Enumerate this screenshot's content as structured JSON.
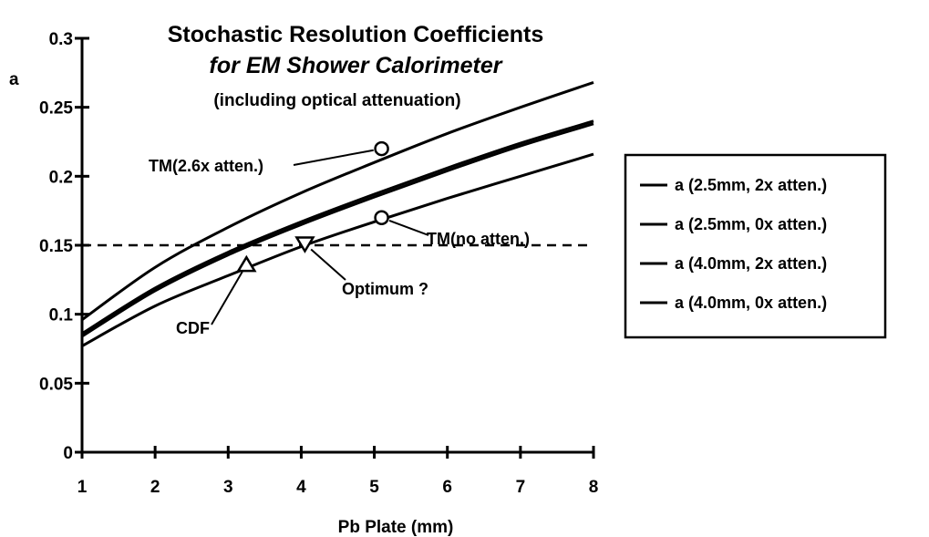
{
  "chart_data": {
    "type": "line",
    "title": "Stochastic Resolution Coefficients",
    "subtitle": "for EM Shower Calorimeter",
    "note": "(including optical attenuation)",
    "xlabel": "Pb Plate (mm)",
    "ylabel": "a",
    "xlim": [
      1,
      8
    ],
    "ylim": [
      0,
      0.3
    ],
    "x_ticks": [
      "1",
      "2",
      "3",
      "4",
      "5",
      "6",
      "7",
      "8"
    ],
    "y_ticks": [
      "0",
      "0.05",
      "0.1",
      "0.15",
      "0.2",
      "0.25",
      "0.3"
    ],
    "grid": false,
    "legend_position": "right",
    "x": [
      1,
      2,
      3,
      4,
      5,
      6,
      7,
      8
    ],
    "series": [
      {
        "name": "a (2.5mm, 2x atten.)",
        "values": [
          0.096,
          0.134,
          0.163,
          0.188,
          0.21,
          0.231,
          0.25,
          0.268
        ]
      },
      {
        "name": "a (2.5mm, 0x atten.)",
        "values": [
          0.086,
          0.119,
          0.145,
          0.167,
          0.187,
          0.206,
          0.224,
          0.24
        ]
      },
      {
        "name": "a (4.0mm, 2x atten.)",
        "values": [
          0.084,
          0.117,
          0.143,
          0.165,
          0.185,
          0.204,
          0.222,
          0.238
        ]
      },
      {
        "name": "a (4.0mm, 0x atten.)",
        "values": [
          0.077,
          0.106,
          0.128,
          0.149,
          0.167,
          0.184,
          0.2,
          0.216
        ]
      }
    ],
    "reference_line": {
      "y": 0.15,
      "style": "dashed"
    },
    "markers": [
      {
        "label": "TM(2.6x atten.)",
        "shape": "circle",
        "x": 5.1,
        "y": 0.22
      },
      {
        "label": "TM(no atten.)",
        "shape": "circle",
        "x": 5.1,
        "y": 0.17
      },
      {
        "label": "Optimum ?",
        "shape": "triangle-down",
        "x": 4.05,
        "y": 0.151
      },
      {
        "label": "CDF",
        "shape": "triangle-up",
        "x": 3.25,
        "y": 0.136
      }
    ]
  }
}
